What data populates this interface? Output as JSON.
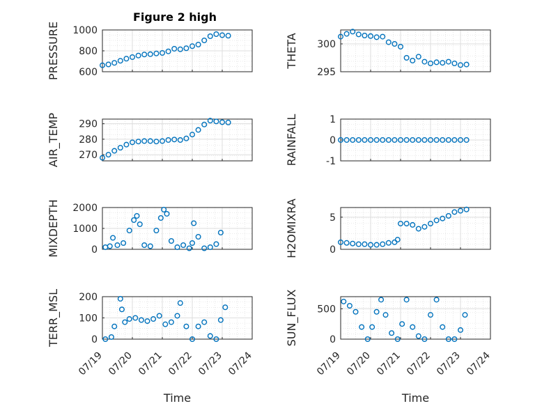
{
  "figure": {
    "title": "Figure 2 high"
  },
  "chart_data": [
    {
      "type": "scatter",
      "ylabel": "PRESSURE",
      "ylim": [
        600,
        1000
      ],
      "yticks": [
        "600",
        "800",
        "1000"
      ],
      "xlabel": "",
      "xlim": [
        0,
        5
      ],
      "grid": true,
      "marker_color": "#0072BD",
      "x": [
        0,
        0.2,
        0.4,
        0.6,
        0.8,
        1.0,
        1.2,
        1.4,
        1.6,
        1.8,
        2.0,
        2.2,
        2.4,
        2.6,
        2.8,
        3.0,
        3.2,
        3.4,
        3.6,
        3.8,
        4.0,
        4.2
      ],
      "y": [
        662,
        670,
        685,
        705,
        725,
        740,
        755,
        765,
        768,
        775,
        780,
        795,
        820,
        815,
        825,
        845,
        860,
        900,
        940,
        960,
        950,
        945
      ]
    },
    {
      "type": "scatter",
      "ylabel": "THETA",
      "ylim": [
        295,
        302.5
      ],
      "yticks": [
        "295",
        "300"
      ],
      "xlabel": "",
      "xlim": [
        0,
        5
      ],
      "grid": true,
      "marker_color": "#0072BD",
      "x": [
        0,
        0.2,
        0.4,
        0.6,
        0.8,
        1.0,
        1.2,
        1.4,
        1.6,
        1.8,
        2.0,
        2.2,
        2.4,
        2.6,
        2.8,
        3.0,
        3.2,
        3.4,
        3.6,
        3.8,
        4.0,
        4.2
      ],
      "y": [
        301.3,
        301.8,
        302.2,
        301.7,
        301.5,
        301.4,
        301.2,
        301.3,
        300.3,
        300.0,
        299.5,
        297.5,
        297.0,
        297.7,
        296.8,
        296.5,
        296.7,
        296.6,
        296.8,
        296.5,
        296.2,
        296.3
      ]
    },
    {
      "type": "scatter",
      "ylabel": "AIR_TEMP",
      "ylim": [
        266,
        293
      ],
      "yticks": [
        "270",
        "280",
        "290"
      ],
      "xlabel": "",
      "xlim": [
        0,
        5
      ],
      "grid": true,
      "marker_color": "#0072BD",
      "x": [
        0,
        0.2,
        0.4,
        0.6,
        0.8,
        1.0,
        1.2,
        1.4,
        1.6,
        1.8,
        2.0,
        2.2,
        2.4,
        2.6,
        2.8,
        3.0,
        3.2,
        3.4,
        3.6,
        3.8,
        4.0,
        4.2
      ],
      "y": [
        268,
        270,
        272.5,
        274.5,
        276.5,
        278,
        278.5,
        278.8,
        278.8,
        278.5,
        278.8,
        279.5,
        279.8,
        279.5,
        280.5,
        283,
        286,
        289.5,
        292,
        291.5,
        291,
        290.8
      ]
    },
    {
      "type": "scatter",
      "ylabel": "RAINFALL",
      "ylim": [
        -1,
        1
      ],
      "yticks": [
        "-1",
        "0",
        "1"
      ],
      "xlabel": "",
      "xlim": [
        0,
        5
      ],
      "grid": true,
      "marker_color": "#0072BD",
      "x": [
        0,
        0.2,
        0.4,
        0.6,
        0.8,
        1.0,
        1.2,
        1.4,
        1.6,
        1.8,
        2.0,
        2.2,
        2.4,
        2.6,
        2.8,
        3.0,
        3.2,
        3.4,
        3.6,
        3.8,
        4.0,
        4.2
      ],
      "y": [
        0,
        0,
        0,
        0,
        0,
        0,
        0,
        0,
        0,
        0,
        0,
        0,
        0,
        0,
        0,
        0,
        0,
        0,
        0,
        0,
        0,
        0
      ]
    },
    {
      "type": "scatter",
      "ylabel": "MIXDEPTH",
      "ylim": [
        0,
        2000
      ],
      "yticks": [
        "0",
        "1000",
        "2000"
      ],
      "xlabel": "",
      "xlim": [
        0,
        5
      ],
      "grid": true,
      "marker_color": "#0072BD",
      "x": [
        0.1,
        0.25,
        0.35,
        0.5,
        0.7,
        0.9,
        1.05,
        1.15,
        1.25,
        1.4,
        1.6,
        1.8,
        1.95,
        2.05,
        2.15,
        2.3,
        2.5,
        2.7,
        2.9,
        3.0,
        3.05,
        3.2,
        3.4,
        3.6,
        3.8,
        3.95
      ],
      "y": [
        100,
        150,
        550,
        200,
        300,
        900,
        1400,
        1600,
        1200,
        200,
        150,
        900,
        1500,
        1900,
        1700,
        400,
        100,
        200,
        50,
        300,
        1250,
        600,
        50,
        100,
        250,
        800
      ]
    },
    {
      "type": "scatter",
      "ylabel": "H2OMIXRA",
      "ylim": [
        0,
        6.5
      ],
      "yticks": [
        "0",
        "5"
      ],
      "xlabel": "",
      "xlim": [
        0,
        5
      ],
      "grid": true,
      "marker_color": "#0072BD",
      "x": [
        0,
        0.2,
        0.4,
        0.6,
        0.8,
        1.0,
        1.2,
        1.4,
        1.6,
        1.8,
        1.9,
        2.0,
        2.2,
        2.4,
        2.6,
        2.8,
        3.0,
        3.2,
        3.4,
        3.6,
        3.8,
        4.0,
        4.2
      ],
      "y": [
        1.1,
        1.0,
        0.9,
        0.8,
        0.8,
        0.7,
        0.7,
        0.8,
        1.0,
        1.1,
        1.5,
        4.0,
        4.0,
        3.8,
        3.2,
        3.5,
        4.0,
        4.5,
        4.8,
        5.2,
        5.8,
        6.0,
        6.2
      ]
    },
    {
      "type": "scatter",
      "ylabel": "TERR_MSL",
      "ylim": [
        0,
        200
      ],
      "yticks": [
        "0",
        "100",
        "200"
      ],
      "xlabel": "Time",
      "xlim": [
        0,
        5
      ],
      "xticks": [
        "07/19",
        "07/20",
        "07/21",
        "07/22",
        "07/23",
        "07/24"
      ],
      "grid": true,
      "marker_color": "#0072BD",
      "x": [
        0.1,
        0.3,
        0.4,
        0.6,
        0.65,
        0.75,
        0.9,
        1.1,
        1.3,
        1.5,
        1.7,
        1.9,
        2.1,
        2.3,
        2.5,
        2.6,
        2.8,
        3.0,
        3.2,
        3.4,
        3.6,
        3.8,
        3.95,
        4.1
      ],
      "y": [
        0,
        10,
        60,
        190,
        140,
        80,
        95,
        100,
        90,
        85,
        95,
        110,
        70,
        80,
        110,
        170,
        60,
        0,
        60,
        80,
        15,
        0,
        90,
        150
      ]
    },
    {
      "type": "scatter",
      "ylabel": "SUN_FLUX",
      "ylim": [
        0,
        700
      ],
      "yticks": [
        "0",
        "500"
      ],
      "xlabel": "Time",
      "xlim": [
        0,
        5
      ],
      "xticks": [
        "07/19",
        "07/20",
        "07/21",
        "07/22",
        "07/23",
        "07/24"
      ],
      "grid": true,
      "marker_color": "#0072BD",
      "x": [
        0.1,
        0.3,
        0.5,
        0.7,
        0.9,
        1.05,
        1.2,
        1.35,
        1.5,
        1.7,
        1.9,
        2.05,
        2.2,
        2.4,
        2.6,
        2.8,
        3.0,
        3.2,
        3.4,
        3.6,
        3.8,
        4.0,
        4.15
      ],
      "y": [
        620,
        550,
        450,
        200,
        0,
        200,
        450,
        650,
        400,
        100,
        0,
        250,
        650,
        200,
        50,
        0,
        400,
        650,
        200,
        0,
        0,
        150,
        400
      ]
    }
  ]
}
